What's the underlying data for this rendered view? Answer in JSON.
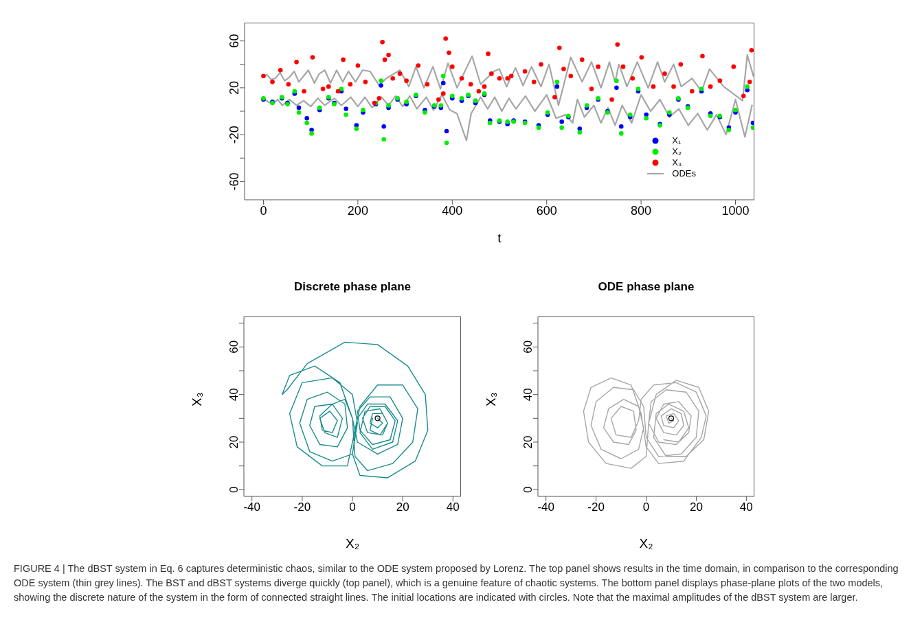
{
  "chart_data": [
    {
      "type": "scatter",
      "xlabel": "t",
      "xlim": [
        -40,
        1040
      ],
      "xticks": [
        0,
        200,
        400,
        600,
        800,
        1000
      ],
      "ylim": [
        -75.6,
        75.6
      ],
      "yticks": [
        -60,
        {
          "value": -40,
          "label": null
        },
        -20,
        {
          "value": 0,
          "label": null
        },
        20,
        {
          "value": 40,
          "label": null
        },
        60
      ],
      "legend": "bottom right",
      "series": [
        {
          "name": "X₁",
          "color": "#0000ff",
          "type": "scatter",
          "x": [
            0,
            19,
            39,
            51,
            66,
            75,
            92,
            102,
            119,
            138,
            150,
            165,
            175,
            197,
            211,
            238,
            249,
            255,
            265,
            284,
            303,
            323,
            342,
            362,
            376,
            381,
            388,
            400,
            420,
            434,
            449,
            468,
            480,
            500,
            517,
            530,
            554,
            583,
            602,
            622,
            632,
            646,
            670,
            685,
            709,
            729,
            748,
            758,
            777,
            794,
            811,
            840,
            860,
            879,
            899,
            928,
            947,
            967,
            986,
            1000,
            1025,
            1037
          ],
          "values": [
            10,
            8,
            11,
            7,
            15,
            3,
            -6,
            -16,
            1,
            11,
            7,
            17,
            2,
            -12,
            -1,
            6,
            22,
            -13,
            3,
            10,
            6,
            13,
            1,
            4,
            3,
            24,
            -17,
            11,
            9,
            13,
            7,
            14,
            -8,
            -9,
            -11,
            -8,
            -9,
            -12,
            -3,
            21,
            -9,
            -5,
            -15,
            3,
            10,
            0,
            20,
            -13,
            -5,
            17,
            -3,
            -11,
            -3,
            10,
            4,
            17,
            -2,
            -5,
            -14,
            -1,
            18,
            -10
          ]
        },
        {
          "name": "X₂",
          "color": "#00ee00",
          "type": "scatter",
          "x": [
            0,
            19,
            39,
            51,
            66,
            75,
            92,
            102,
            119,
            138,
            150,
            165,
            175,
            197,
            211,
            238,
            249,
            255,
            265,
            284,
            303,
            323,
            342,
            362,
            376,
            381,
            388,
            400,
            420,
            434,
            449,
            468,
            480,
            500,
            517,
            530,
            554,
            583,
            602,
            622,
            632,
            646,
            670,
            685,
            709,
            729,
            748,
            758,
            777,
            794,
            811,
            840,
            860,
            879,
            899,
            928,
            947,
            967,
            986,
            1000,
            1025,
            1037
          ],
          "values": [
            11,
            7,
            12,
            6,
            17,
            -1,
            -10,
            -19,
            3,
            12,
            6,
            19,
            -3,
            -15,
            1,
            7,
            26,
            -24,
            5,
            11,
            8,
            14,
            -1,
            5,
            5,
            30,
            -27,
            13,
            11,
            14,
            9,
            15,
            -10,
            -8,
            -9,
            -9,
            -10,
            -14,
            -1,
            25,
            -14,
            -4,
            -18,
            5,
            11,
            -1,
            26,
            -19,
            -3,
            19,
            -6,
            -12,
            -1,
            11,
            3,
            19,
            -4,
            -4,
            -16,
            1,
            21,
            -14
          ]
        },
        {
          "name": "X₃",
          "color": "#ff0000",
          "type": "scatter",
          "x": [
            0,
            19,
            36,
            53,
            70,
            86,
            104,
            126,
            138,
            158,
            169,
            184,
            200,
            216,
            235,
            245,
            252,
            257,
            265,
            274,
            289,
            303,
            328,
            347,
            371,
            381,
            386,
            393,
            400,
            420,
            439,
            456,
            468,
            476,
            483,
            500,
            517,
            525,
            554,
            573,
            588,
            617,
            627,
            636,
            651,
            675,
            695,
            709,
            738,
            750,
            762,
            782,
            801,
            826,
            850,
            869,
            884,
            908,
            930,
            947,
            967,
            996,
            1017,
            1030,
            1034
          ],
          "values": [
            30,
            25,
            35,
            23,
            42,
            17,
            46,
            19,
            21,
            17,
            44,
            23,
            39,
            25,
            7,
            11,
            59,
            44,
            48,
            28,
            32,
            26,
            39,
            23,
            10,
            15,
            62,
            50,
            38,
            28,
            23,
            17,
            21,
            49,
            32,
            28,
            28,
            30,
            34,
            25,
            40,
            12,
            54,
            36,
            30,
            44,
            19,
            38,
            10,
            57,
            38,
            28,
            46,
            21,
            32,
            21,
            40,
            17,
            47,
            21,
            26,
            38,
            13,
            25,
            52
          ]
        },
        {
          "name": "ODEs",
          "color": "#a6a6a6",
          "type": "line",
          "x": [
            0,
            8,
            16,
            25,
            35,
            45,
            55,
            65,
            75,
            85,
            95,
            108,
            118,
            130,
            142,
            155,
            168,
            180,
            195,
            210,
            226,
            245,
            260,
            289,
            308,
            323,
            340,
            359,
            375,
            391,
            410,
            442,
            460,
            488,
            500,
            515,
            534,
            550,
            568,
            588,
            605,
            625,
            651,
            675,
            695,
            715,
            733,
            745,
            753,
            770,
            792,
            815,
            835,
            850,
            869,
            885,
            908,
            928,
            945,
            975,
            1015,
            1025,
            1038
          ],
          "values": [
            30,
            31,
            27,
            28,
            33,
            26,
            29,
            34,
            25,
            30,
            35,
            24,
            32,
            35,
            24,
            35,
            25,
            34,
            25,
            35,
            34,
            22,
            28,
            35,
            21,
            38,
            20,
            38,
            19,
            41,
            20,
            47,
            23,
            34,
            36,
            21,
            37,
            22,
            38,
            21,
            40,
            5,
            46,
            25,
            42,
            20,
            42,
            25,
            40,
            21,
            42,
            20,
            42,
            25,
            40,
            21,
            28,
            17,
            36,
            21,
            9,
            48,
            30
          ]
        },
        {
          "color": "#a6a6a6",
          "type": "line",
          "x": [
            0,
            10,
            20,
            30,
            40,
            55,
            70,
            85,
            100,
            115,
            130,
            150,
            165,
            185,
            200,
            215,
            230,
            250,
            265,
            280,
            295,
            310,
            325,
            345,
            360,
            378,
            395,
            410,
            430,
            440,
            460,
            475,
            490,
            505,
            520,
            535,
            555,
            575,
            600,
            620,
            640,
            655,
            665,
            680,
            700,
            715,
            730,
            745,
            760,
            780,
            800,
            820,
            840,
            860,
            880,
            900,
            920,
            940,
            960,
            980,
            1000,
            1020,
            1035
          ],
          "values": [
            11,
            8,
            6,
            10,
            5,
            10,
            5,
            9,
            4,
            11,
            5,
            11,
            5,
            12,
            4,
            12,
            3,
            12,
            5,
            13,
            4,
            13,
            2,
            12,
            1,
            14,
            1,
            -2,
            -25,
            -2,
            12,
            2,
            12,
            0,
            11,
            2,
            13,
            0,
            14,
            -6,
            -3,
            -10,
            10,
            -5,
            5,
            -10,
            3,
            -12,
            5,
            -10,
            14,
            0,
            10,
            -5,
            2,
            -12,
            -2,
            -16,
            -3,
            -20,
            10,
            -22,
            5
          ]
        }
      ]
    },
    {
      "type": "line",
      "title": "Discrete phase plane",
      "xlabel": "X₂",
      "ylabel": "X₃",
      "xlim": [
        -43.2,
        43.2
      ],
      "xticks": [
        -40,
        -20,
        0,
        20,
        40
      ],
      "ylim": [
        -2.8,
        72.8
      ],
      "yticks": [
        0,
        {
          "value": 10,
          "label": null
        },
        20,
        {
          "value": 30,
          "label": null
        },
        40,
        {
          "value": 50,
          "label": null
        },
        60,
        {
          "value": 70,
          "label": null
        }
      ],
      "series": [
        {
          "color": "#1a8c8c",
          "type": "line",
          "x": [
            10,
            12,
            10,
            7,
            8,
            12,
            14,
            12,
            6,
            4,
            7,
            13,
            17,
            15,
            8,
            3,
            2,
            7,
            15,
            20,
            18,
            10,
            2,
            0,
            -3,
            -8,
            -13,
            -12,
            -8,
            -6,
            -9,
            -13,
            -11,
            -6,
            -4,
            -8,
            -15,
            -17,
            -13,
            -6,
            -2,
            -3,
            -10,
            -18,
            -21,
            -17,
            -8,
            0,
            2,
            0,
            -8,
            -20,
            -25,
            -22,
            -12,
            -2,
            0,
            3,
            10,
            20,
            26,
            24,
            16,
            6,
            1,
            0,
            -5,
            -15,
            -25,
            -28,
            -26,
            -18,
            -3,
            10,
            22,
            29,
            30,
            25,
            14,
            3,
            0,
            2,
            6,
            13,
            18,
            16,
            8,
            3,
            5,
            11,
            14,
            11,
            7,
            8
          ],
          "values": [
            30,
            28,
            26,
            28,
            32,
            32,
            28,
            23,
            24,
            30,
            35,
            35,
            29,
            21,
            19,
            25,
            33,
            39,
            39,
            30,
            19,
            15,
            20,
            30,
            38,
            36,
            31,
            25,
            24,
            29,
            33,
            30,
            24,
            22,
            30,
            36,
            35,
            27,
            19,
            18,
            26,
            36,
            41,
            38,
            28,
            16,
            12,
            15,
            28,
            40,
            47,
            45,
            32,
            18,
            10,
            10,
            20,
            35,
            44,
            44,
            34,
            20,
            11,
            8,
            14,
            30,
            45,
            52,
            48,
            40,
            42,
            53,
            62,
            61,
            52,
            40,
            25,
            12,
            5,
            6,
            15,
            30,
            36,
            36,
            29,
            20,
            17,
            24,
            33,
            34,
            28,
            23,
            25,
            30
          ]
        },
        {
          "color": "#000000",
          "type": "scatter",
          "x": [
            10
          ],
          "values": [
            30
          ]
        }
      ]
    },
    {
      "type": "line",
      "title": "ODE phase plane",
      "xlabel": "X₂",
      "ylabel": "X₃",
      "xlim": [
        -43.2,
        43.2
      ],
      "xticks": [
        -40,
        -20,
        0,
        20,
        40
      ],
      "ylim": [
        -2.8,
        72.8
      ],
      "yticks": [
        0,
        {
          "value": 10,
          "label": null
        },
        20,
        {
          "value": 30,
          "label": null
        },
        40,
        {
          "value": 50,
          "label": null
        },
        60,
        {
          "value": 70,
          "label": null
        }
      ],
      "annotations": [
        "FIGURE 4 | The dBST system in Eq. 6 captures deterministic chaos, similar to the ODE system proposed by Lorenz. The top panel shows results in the time domain, in comparison to the corresponding ODE system (thin grey lines). The BST and dBST systems diverge quickly (top panel), which is a genuine feature of chaotic systems. The bottom panel displays phase-plane plots of the two models, showing the discrete nature of the system in the form of connected straight lines. The initial locations are indicated with circles. Note that the maximal amplitudes of the dBST system are larger."
      ],
      "series": [
        {
          "color": "#a6a6a6",
          "type": "line",
          "x": [
            10,
            11,
            9,
            8,
            11,
            13,
            11,
            7,
            6,
            10,
            14,
            15,
            12,
            7,
            4,
            7,
            13,
            18,
            17,
            12,
            5,
            1,
            2,
            8,
            16,
            21,
            20,
            14,
            5,
            0,
            -1,
            -5,
            -13,
            -20,
            -22,
            -18,
            -10,
            -3,
            -1,
            -3,
            -9,
            -15,
            -17,
            -13,
            -7,
            -4,
            -5,
            -10,
            -14,
            -12,
            -6,
            -3,
            -2,
            3,
            12,
            20,
            24,
            22,
            15,
            5,
            0,
            -2,
            -6,
            -14,
            -22,
            -25,
            -23,
            -16,
            -6,
            0,
            1,
            4,
            12,
            21,
            25,
            23,
            16,
            8,
            3,
            4,
            9,
            15,
            17,
            13,
            7
          ],
          "values": [
            30,
            29,
            28,
            31,
            32,
            29,
            26,
            27,
            31,
            34,
            32,
            27,
            23,
            24,
            30,
            36,
            37,
            31,
            24,
            19,
            20,
            28,
            37,
            42,
            41,
            33,
            22,
            15,
            14,
            22,
            35,
            42,
            43,
            37,
            27,
            17,
            13,
            17,
            26,
            35,
            38,
            34,
            26,
            20,
            19,
            25,
            33,
            35,
            30,
            23,
            22,
            29,
            38,
            44,
            45,
            41,
            31,
            22,
            12,
            11,
            18,
            32,
            44,
            47,
            43,
            33,
            20,
            11,
            9,
            14,
            28,
            40,
            46,
            43,
            33,
            21,
            14,
            14,
            22,
            32,
            36,
            33,
            26,
            20,
            21
          ]
        },
        {
          "color": "#000000",
          "type": "scatter",
          "x": [
            10
          ],
          "values": [
            30
          ]
        }
      ]
    }
  ]
}
